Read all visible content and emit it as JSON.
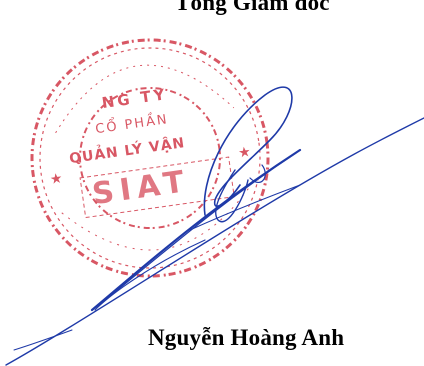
{
  "signature_block": {
    "title": "Tổng Giám đốc",
    "signer_name": "Nguyễn Hoàng Anh"
  },
  "stamp": {
    "color": "#d23a4a",
    "lines": [
      "NG TY",
      "CỔ PHẦN",
      "QUẢN LÝ VẬN",
      "SIAT"
    ],
    "ring_text": "CÔNG TY CỔ PHẦN QUẢN LÝ VẬN"
  },
  "signature": {
    "ink_color": "#1f3aa8"
  }
}
